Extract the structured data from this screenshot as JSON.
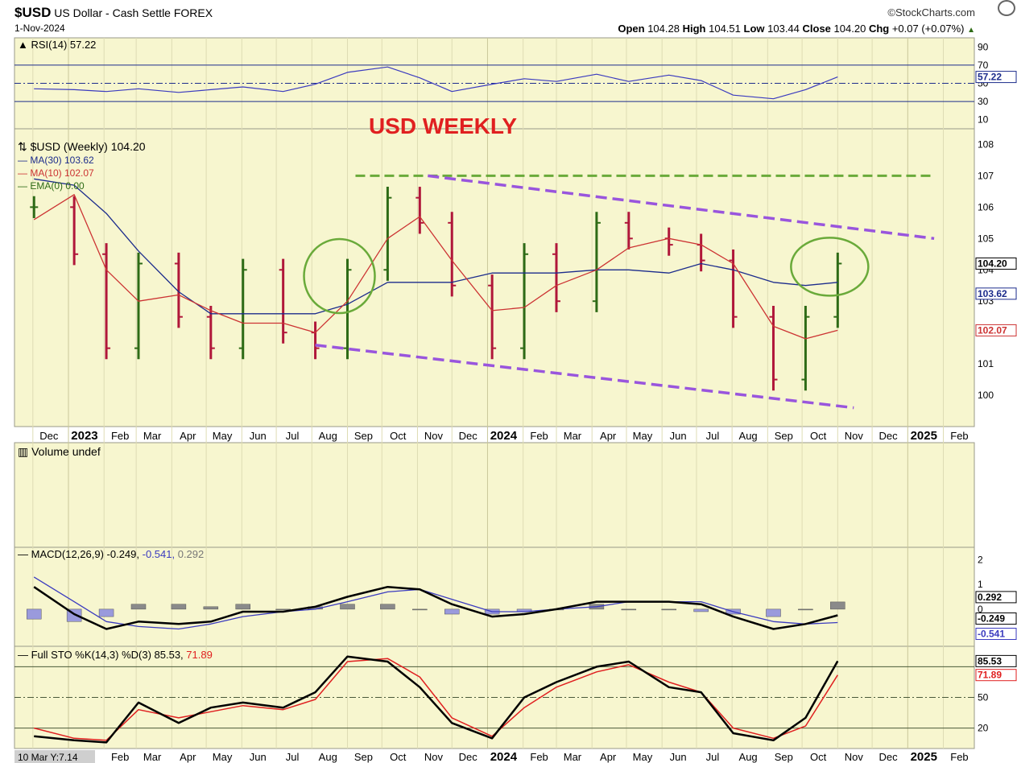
{
  "header": {
    "symbol": "$USD",
    "name": "US Dollar - Cash Settle",
    "exchange": "FOREX",
    "source": "StockCharts.com",
    "date": "1-Nov-2024",
    "open_label": "Open",
    "open": "104.28",
    "high_label": "High",
    "high": "104.51",
    "low_label": "Low",
    "low": "103.44",
    "close_label": "Close",
    "close": "104.20",
    "chg_label": "Chg",
    "chg": "+0.07 (+0.07%)"
  },
  "colors": {
    "panel_bg": "#f7f6cf",
    "up_bar": "#2e6b16",
    "down_bar": "#b0173a",
    "ma30": "#1c2c8c",
    "ma10": "#cc3333",
    "annotation_green": "#6aaa3a",
    "channel_purple": "#9955dd",
    "title_red": "#e02020"
  },
  "chart_data": [
    {
      "type": "line",
      "panel": "rsi",
      "legend": "RSI(14) 57.22",
      "y_ticks": [
        90,
        70,
        50,
        30,
        10
      ],
      "ylim": [
        0,
        100
      ],
      "reference_lines": [
        70,
        30,
        50
      ],
      "last_value_label": "57.22",
      "x": [
        "2022-12-02",
        "2023-01-06",
        "2023-02-03",
        "2023-03-03",
        "2023-04-07",
        "2023-05-05",
        "2023-06-02",
        "2023-07-07",
        "2023-08-04",
        "2023-09-01",
        "2023-10-06",
        "2023-11-03",
        "2023-12-01",
        "2024-01-05",
        "2024-02-02",
        "2024-03-01",
        "2024-04-05",
        "2024-05-03",
        "2024-06-07",
        "2024-07-05",
        "2024-08-02",
        "2024-09-06",
        "2024-10-04",
        "2024-11-01"
      ],
      "values": [
        44,
        43,
        41,
        44,
        40,
        43,
        46,
        41,
        49,
        62,
        68,
        56,
        41,
        49,
        55,
        52,
        60,
        52,
        59,
        53,
        37,
        33,
        43,
        57
      ]
    },
    {
      "type": "bar",
      "panel": "price",
      "title": "USD WEEKLY",
      "legend": [
        "$USD (Weekly) 104.20",
        "MA(30) 103.62",
        "MA(10) 102.07",
        "EMA(0) 0.00"
      ],
      "y_ticks": [
        100,
        101,
        102,
        103,
        104,
        105,
        106,
        107,
        108
      ],
      "ylim": [
        99,
        108.5
      ],
      "x_ticks": [
        "Dec",
        "2023",
        "Feb",
        "Mar",
        "Apr",
        "May",
        "Jun",
        "Jul",
        "Aug",
        "Sep",
        "Oct",
        "Nov",
        "Dec",
        "2024",
        "Feb",
        "Mar",
        "Apr",
        "May",
        "Jun",
        "Jul",
        "Aug",
        "Sep",
        "Oct",
        "Nov",
        "Dec",
        "2025",
        "Feb"
      ],
      "last_value_labels": [
        "104.20",
        "103.62",
        "102.07"
      ],
      "x": [
        "2022-12-02",
        "2023-01-06",
        "2023-02-03",
        "2023-03-03",
        "2023-04-07",
        "2023-05-05",
        "2023-06-02",
        "2023-07-07",
        "2023-08-04",
        "2023-09-01",
        "2023-10-06",
        "2023-11-03",
        "2023-12-01",
        "2024-01-05",
        "2024-02-02",
        "2024-03-01",
        "2024-04-05",
        "2024-05-03",
        "2024-06-07",
        "2024-07-05",
        "2024-08-02",
        "2024-09-06",
        "2024-10-04",
        "2024-11-01"
      ],
      "series": [
        {
          "name": "$USD (Weekly)",
          "values": [
            106.0,
            104.5,
            101.5,
            104.2,
            102.5,
            101.5,
            104.0,
            102.0,
            101.5,
            104.0,
            106.3,
            105.5,
            103.5,
            101.5,
            104.5,
            103.0,
            105.5,
            105.0,
            104.8,
            104.3,
            102.5,
            100.5,
            102.5,
            104.2
          ]
        },
        {
          "name": "MA(30)",
          "values": [
            106.9,
            106.7,
            105.8,
            104.6,
            103.3,
            102.6,
            102.6,
            102.6,
            102.6,
            102.9,
            103.6,
            103.6,
            103.6,
            103.9,
            103.9,
            103.9,
            104.0,
            104.0,
            103.9,
            104.2,
            104.0,
            103.6,
            103.5,
            103.6
          ]
        },
        {
          "name": "MA(10)",
          "values": [
            105.6,
            106.4,
            104.0,
            103.0,
            103.2,
            102.7,
            102.3,
            102.3,
            102.0,
            103.0,
            105.0,
            105.7,
            104.3,
            102.7,
            102.8,
            103.5,
            104.0,
            104.7,
            105.0,
            104.8,
            104.2,
            102.2,
            101.8,
            102.07
          ]
        }
      ],
      "channel_upper": {
        "points": [
          [
            "2023-11-10",
            107.0
          ],
          [
            "2025-01-24",
            105.0
          ]
        ]
      },
      "channel_lower": {
        "points": [
          [
            "2023-08-04",
            101.6
          ],
          [
            "2024-11-15",
            99.6
          ]
        ]
      },
      "resistance": {
        "value": 107.0,
        "from": "2023-09-08",
        "to": "2025-01-24"
      }
    },
    {
      "type": "bar",
      "panel": "volume",
      "legend": "Volume undef"
    },
    {
      "type": "line",
      "panel": "macd",
      "legend": "MACD(12,26,9) -0.249, -0.541, 0.292",
      "legend_parts": [
        "MACD(12,26,9) -0.249",
        "-0.541",
        "0.292"
      ],
      "y_ticks": [
        2,
        1,
        0,
        -1
      ],
      "ylim": [
        -1.5,
        2.5
      ],
      "last_value_labels": [
        "0.292",
        "-0.249",
        "-0.541"
      ],
      "x": [
        "2022-12-02",
        "2023-01-06",
        "2023-02-03",
        "2023-03-03",
        "2023-04-07",
        "2023-05-05",
        "2023-06-02",
        "2023-07-07",
        "2023-08-04",
        "2023-09-01",
        "2023-10-06",
        "2023-11-03",
        "2023-12-01",
        "2024-01-05",
        "2024-02-02",
        "2024-03-01",
        "2024-04-05",
        "2024-05-03",
        "2024-06-07",
        "2024-07-05",
        "2024-08-02",
        "2024-09-06",
        "2024-10-04",
        "2024-11-01"
      ],
      "series": [
        {
          "name": "MACD",
          "values": [
            0.9,
            -0.2,
            -0.8,
            -0.5,
            -0.6,
            -0.5,
            -0.1,
            -0.1,
            0.1,
            0.5,
            0.9,
            0.8,
            0.2,
            -0.3,
            -0.2,
            0.0,
            0.3,
            0.3,
            0.3,
            0.2,
            -0.3,
            -0.8,
            -0.6,
            -0.249
          ]
        },
        {
          "name": "Signal",
          "values": [
            1.3,
            0.3,
            -0.5,
            -0.7,
            -0.8,
            -0.6,
            -0.3,
            -0.1,
            0.0,
            0.3,
            0.7,
            0.8,
            0.4,
            -0.1,
            -0.1,
            0.0,
            0.1,
            0.3,
            0.3,
            0.3,
            -0.1,
            -0.5,
            -0.6,
            -0.541
          ]
        },
        {
          "name": "Histogram",
          "values": [
            -0.4,
            -0.5,
            -0.3,
            0.2,
            0.2,
            0.1,
            0.2,
            0.0,
            0.1,
            0.2,
            0.2,
            0.0,
            -0.2,
            -0.2,
            -0.1,
            0.0,
            0.2,
            0.0,
            0.0,
            -0.1,
            -0.2,
            -0.3,
            0.0,
            0.292
          ]
        }
      ]
    },
    {
      "type": "line",
      "panel": "stochastic",
      "legend": "Full STO %K(14,3) %D(3) 85.53, 71.89",
      "legend_parts": [
        "Full STO %K(14,3) %D(3) 85.53",
        "71.89"
      ],
      "y_ticks": [
        80,
        50,
        20
      ],
      "y_tick_labels": [
        "50",
        "20"
      ],
      "ylim": [
        0,
        100
      ],
      "reference_lines": [
        80,
        50,
        20
      ],
      "last_value_labels": [
        "85.53",
        "71.89"
      ],
      "x_ticks": [
        "10 Mar Y:7.14",
        "Feb",
        "Mar",
        "Apr",
        "May",
        "Jun",
        "Jul",
        "Aug",
        "Sep",
        "Oct",
        "Nov",
        "Dec",
        "2024",
        "Feb",
        "Mar",
        "Apr",
        "May",
        "Jun",
        "Jul",
        "Aug",
        "Sep",
        "Oct",
        "Nov",
        "Dec",
        "2025",
        "Feb"
      ],
      "x": [
        "2022-12-02",
        "2023-01-06",
        "2023-02-03",
        "2023-03-03",
        "2023-04-07",
        "2023-05-05",
        "2023-06-02",
        "2023-07-07",
        "2023-08-04",
        "2023-09-01",
        "2023-10-06",
        "2023-11-03",
        "2023-12-01",
        "2024-01-05",
        "2024-02-02",
        "2024-03-01",
        "2024-04-05",
        "2024-05-03",
        "2024-06-07",
        "2024-07-05",
        "2024-08-02",
        "2024-09-06",
        "2024-10-04",
        "2024-11-01"
      ],
      "series": [
        {
          "name": "%K",
          "values": [
            12,
            8,
            6,
            45,
            25,
            40,
            45,
            40,
            55,
            90,
            85,
            60,
            25,
            10,
            50,
            65,
            80,
            85,
            60,
            55,
            15,
            8,
            30,
            85.53
          ]
        },
        {
          "name": "%D",
          "values": [
            20,
            10,
            8,
            38,
            30,
            36,
            42,
            38,
            48,
            85,
            88,
            70,
            30,
            12,
            40,
            60,
            75,
            82,
            65,
            55,
            20,
            10,
            22,
            71.89
          ]
        }
      ]
    }
  ]
}
